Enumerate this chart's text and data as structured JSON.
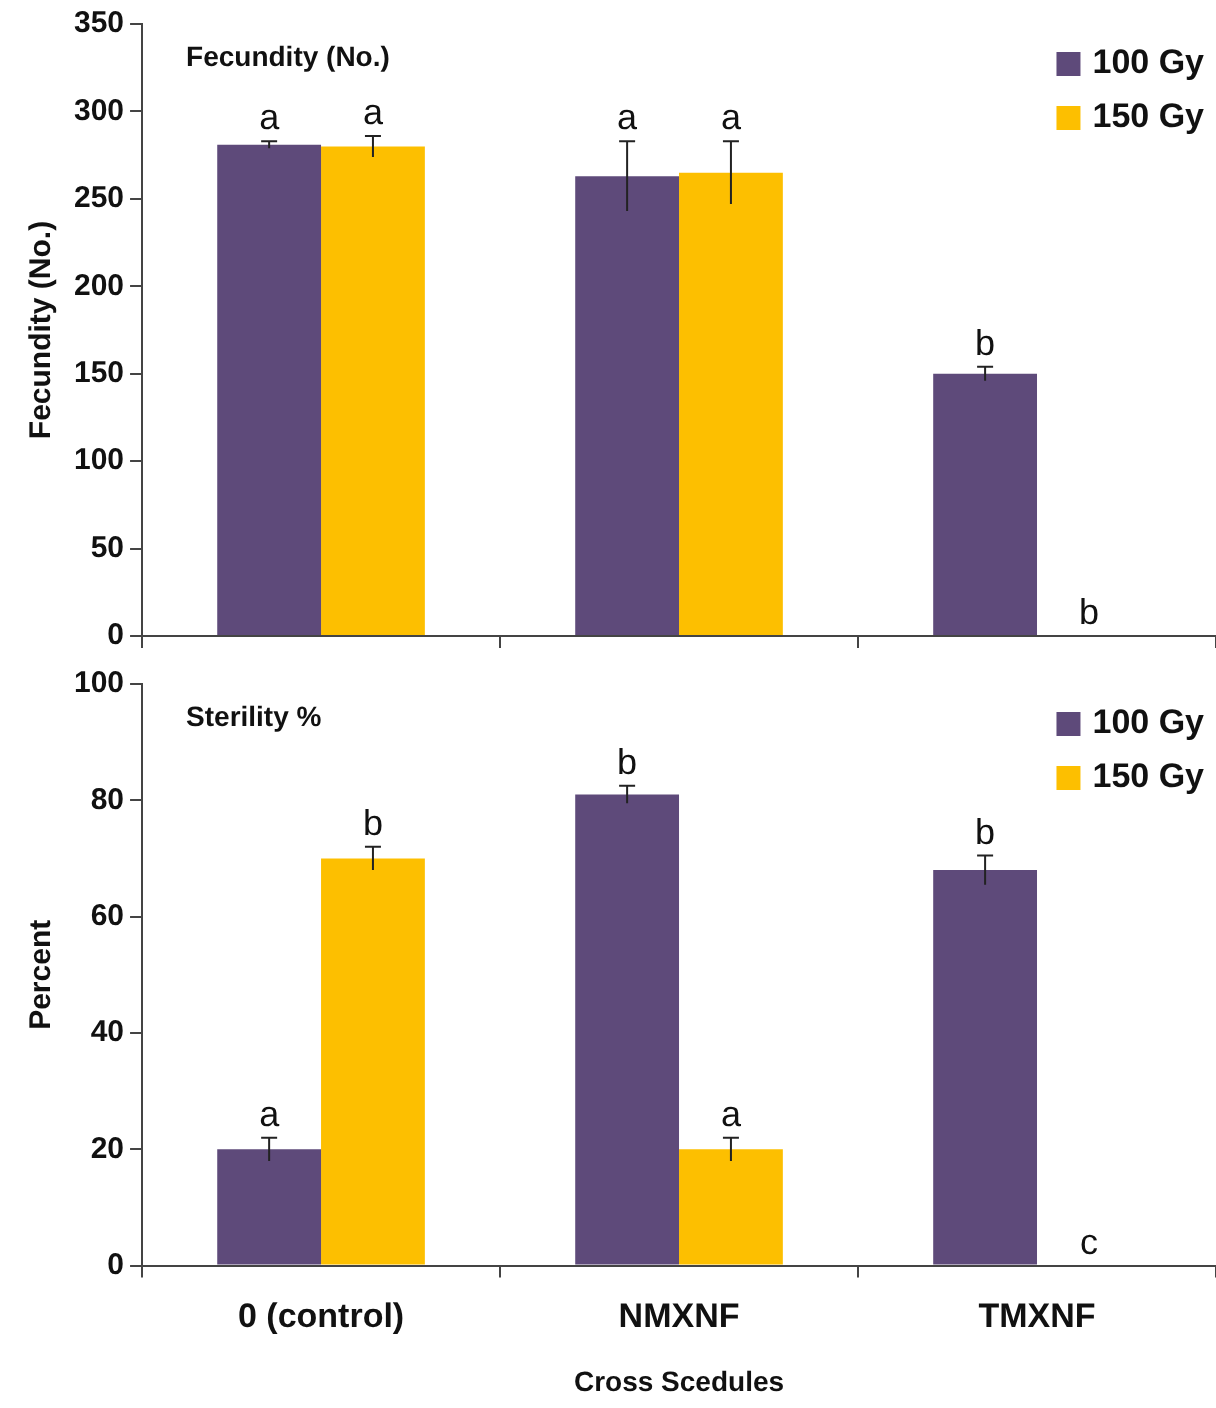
{
  "chart_data": [
    {
      "type": "bar",
      "title": "Fecundity (No.)",
      "ylabel": "Fecundity (No.)",
      "categories": [
        "0 (control)",
        "NMXNF",
        "TMXNF"
      ],
      "tick_labels": "y",
      "ylim": [
        0,
        350
      ],
      "yticks": [
        0,
        50,
        100,
        150,
        200,
        250,
        300,
        350
      ],
      "grid": false,
      "legend": "top right",
      "series": [
        {
          "name": "100 Gy",
          "color": "#5e4a7a",
          "values": [
            281,
            263,
            150
          ],
          "errors": [
            2,
            20,
            4
          ],
          "value_labels": [
            "a",
            "a",
            "b"
          ]
        },
        {
          "name": "150 Gy",
          "color": "#fdbf00",
          "values": [
            280,
            265,
            null
          ],
          "errors": [
            6,
            18,
            null
          ],
          "value_labels": [
            "a",
            "a",
            null
          ]
        }
      ],
      "annotations": [
        {
          "text": "b",
          "x": "TMXNF",
          "y": 0
        }
      ]
    },
    {
      "type": "bar",
      "title": "Sterility %",
      "ylabel": "Percent",
      "xlabel": "Cross Scedules",
      "categories": [
        "0 (control)",
        "NMXNF",
        "TMXNF"
      ],
      "ylim": [
        0,
        100
      ],
      "yticks": [
        0,
        20,
        40,
        60,
        80,
        100
      ],
      "grid": false,
      "legend": "top right",
      "series": [
        {
          "name": "100 Gy",
          "color": "#5e4a7a",
          "values": [
            20,
            81,
            68
          ],
          "errors": [
            2,
            1.5,
            2.5
          ],
          "value_labels": [
            "a",
            "b",
            "b"
          ]
        },
        {
          "name": "150 Gy",
          "color": "#fdbf00",
          "values": [
            70,
            20,
            null
          ],
          "errors": [
            2,
            2,
            null
          ],
          "value_labels": [
            "b",
            "a",
            null
          ]
        }
      ],
      "annotations": [
        {
          "text": "c",
          "x": "TMXNF",
          "y": 0
        }
      ]
    }
  ]
}
